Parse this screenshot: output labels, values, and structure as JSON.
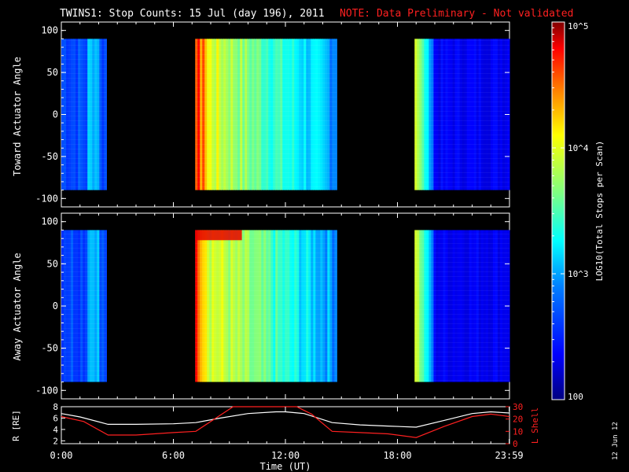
{
  "title": {
    "main": "TWINS1: Stop Counts: 15 Jul (day 196), 2011",
    "note": "NOTE: Data Preliminary - Not validated",
    "note_color": "#ff2020"
  },
  "side_date": "12 Jun 12",
  "colorbar": {
    "label": "LOG10(Total Stops per Scan)",
    "ticks": [
      "100",
      "10^3",
      "10^4",
      "10^5"
    ],
    "log_range": [
      2,
      5
    ],
    "colormap": [
      "#000080",
      "#0000ff",
      "#0080ff",
      "#00ffff",
      "#80ff80",
      "#ffff00",
      "#ff8000",
      "#ff0000",
      "#800000"
    ]
  },
  "chart_data": [
    {
      "type": "heatmap",
      "ylabel": "Toward Actuator Angle",
      "ylim": [
        -110,
        110
      ],
      "yticks": [
        "100",
        "50",
        "0",
        "-50",
        "-100"
      ],
      "xlim_hours": [
        0,
        24
      ],
      "angle_range": [
        -90,
        90
      ],
      "blocks": [
        {
          "start": "00:00",
          "end": "02:25",
          "mean_log_counts": 2.6
        },
        {
          "start": "07:10",
          "end": "14:45",
          "mean_log_counts": 3.3
        },
        {
          "start": "18:55",
          "end": "24:00",
          "mean_log_counts": 2.5
        }
      ],
      "data_gaps": [
        [
          "02:25",
          "07:10"
        ],
        [
          "14:45",
          "18:55"
        ]
      ]
    },
    {
      "type": "heatmap",
      "ylabel": "Away Actuator Angle",
      "ylim": [
        -110,
        110
      ],
      "yticks": [
        "100",
        "50",
        "0",
        "-50",
        "-100"
      ],
      "xlim_hours": [
        0,
        24
      ],
      "angle_range": [
        -90,
        90
      ],
      "blocks": [
        {
          "start": "00:00",
          "end": "02:25",
          "mean_log_counts": 2.6
        },
        {
          "start": "07:10",
          "end": "14:45",
          "mean_log_counts": 3.4
        },
        {
          "start": "18:55",
          "end": "24:00",
          "mean_log_counts": 2.5
        }
      ],
      "data_gaps": [
        [
          "02:25",
          "07:10"
        ],
        [
          "14:45",
          "18:55"
        ]
      ]
    },
    {
      "type": "line",
      "xlabel": "Time (UT)",
      "xticks": [
        "0:00",
        "6:00",
        "12:00",
        "18:00",
        "23:59"
      ],
      "ylabel_left": "R [RE]",
      "yticks_left": [
        "2",
        "4",
        "6",
        "8"
      ],
      "ylim_left": [
        1.5,
        8
      ],
      "ylabel_right": "L Shell",
      "yticks_right": [
        "0",
        "10",
        "20",
        "30"
      ],
      "ylim_right": [
        0,
        30
      ],
      "series": [
        {
          "name": "R [RE]",
          "color": "#ffffff",
          "x": [
            0,
            1,
            2.5,
            4,
            6,
            7.2,
            8.5,
            10,
            11.5,
            12,
            13,
            14.5,
            16,
            17.5,
            19,
            20.5,
            22,
            23,
            24
          ],
          "y": [
            6.8,
            6.2,
            4.9,
            4.9,
            5.0,
            5.2,
            6.0,
            6.8,
            7.1,
            7.1,
            6.8,
            5.2,
            4.8,
            4.6,
            4.4,
            5.6,
            6.8,
            7.1,
            6.9
          ]
        },
        {
          "name": "L Shell",
          "color": "#ff2020",
          "x": [
            0,
            1.2,
            2.5,
            4,
            6,
            7.2,
            8.6,
            9.2,
            12.6,
            13.4,
            14.5,
            16,
            17.5,
            19,
            20.5,
            22,
            23,
            24
          ],
          "y": [
            22,
            18,
            7,
            7,
            9,
            10,
            24,
            30,
            30,
            24,
            10,
            9,
            8,
            5,
            14,
            22,
            24,
            22
          ]
        }
      ]
    }
  ]
}
